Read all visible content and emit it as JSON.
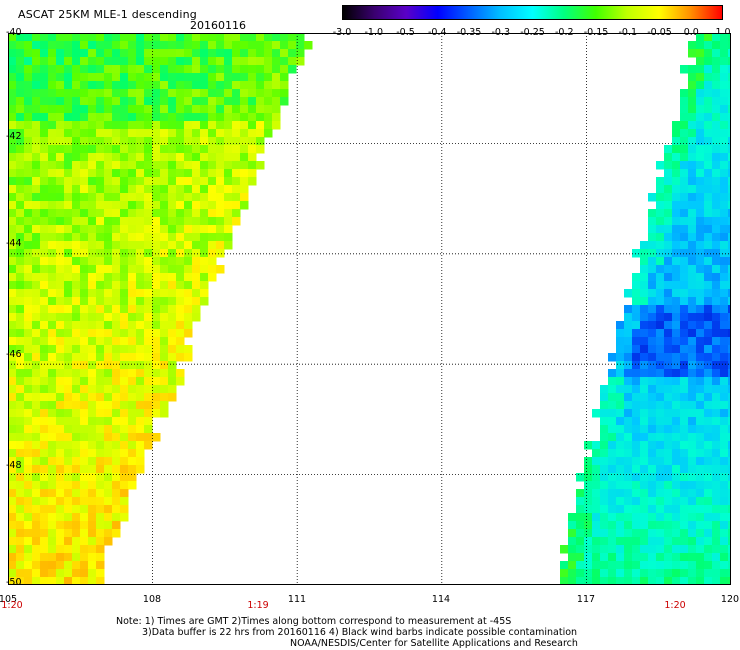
{
  "header": {
    "title": "ASCAT 25KM MLE-1 descending",
    "date": "20160116"
  },
  "colorbar": {
    "labels": [
      "-3.0",
      "-1.0",
      "-0.5",
      "-0.4",
      "-0.35",
      "-0.3",
      "-0.25",
      "-0.2",
      "-0.15",
      "-0.1",
      "-0.05",
      "0.0",
      "1.0"
    ],
    "colors": [
      "#000000",
      "#3a0070",
      "#5a00c8",
      "#0000ff",
      "#0060ff",
      "#00c0ff",
      "#00ffff",
      "#00ff80",
      "#40ff00",
      "#c0ff00",
      "#ffff00",
      "#ff9000",
      "#ff0000"
    ]
  },
  "map": {
    "lat_labels": [
      "-40",
      "-42",
      "-44",
      "-46",
      "-48",
      "-50"
    ],
    "lon_labels": [
      "105",
      "108",
      "111",
      "114",
      "117",
      "120"
    ],
    "lat_range": [
      -50,
      -40
    ],
    "lon_range": [
      105,
      120
    ],
    "grid": "dotted",
    "time_labels": [
      "1:20",
      "1:19",
      "1:20"
    ]
  },
  "notes": {
    "line1": "Note: 1) Times are GMT 2)Times along bottom correspond to measurement at -45S",
    "line2": "3)Data buffer is 22 hrs from 20160116 4) Black wind barbs indicate possible contamination",
    "line3": "NOAA/NESDIS/Center for Satellite Applications and Research"
  }
}
